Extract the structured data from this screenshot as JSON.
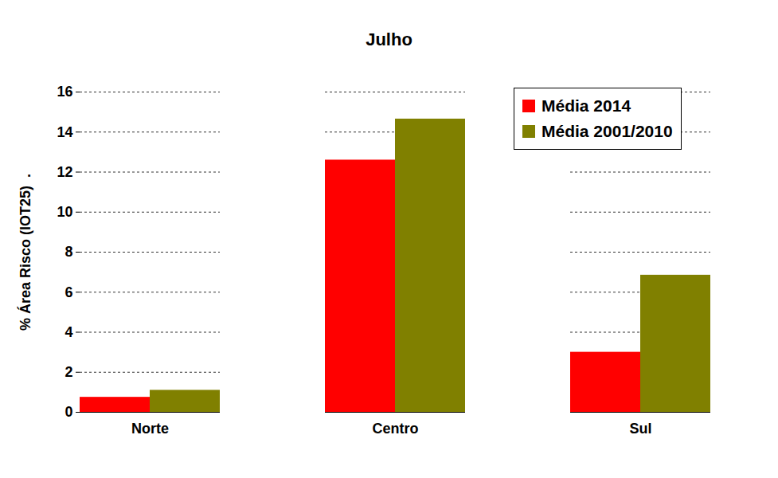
{
  "chart_data": {
    "type": "bar",
    "title": "Julho",
    "y_label": "% Área Risco (IOT25)  .",
    "categories": [
      "Norte",
      "Centro",
      "Sul"
    ],
    "series": [
      {
        "name": "Média 2014",
        "color": "#ff0000",
        "values": [
          0.75,
          12.6,
          3.0
        ]
      },
      {
        "name": "Média 2001/2010",
        "color": "#808000",
        "values": [
          1.1,
          14.65,
          6.85
        ]
      }
    ],
    "ylim": [
      0,
      16
    ],
    "yticks": [
      0,
      2,
      4,
      6,
      8,
      10,
      12,
      14,
      16
    ],
    "grid": true,
    "legend": "top-right"
  }
}
